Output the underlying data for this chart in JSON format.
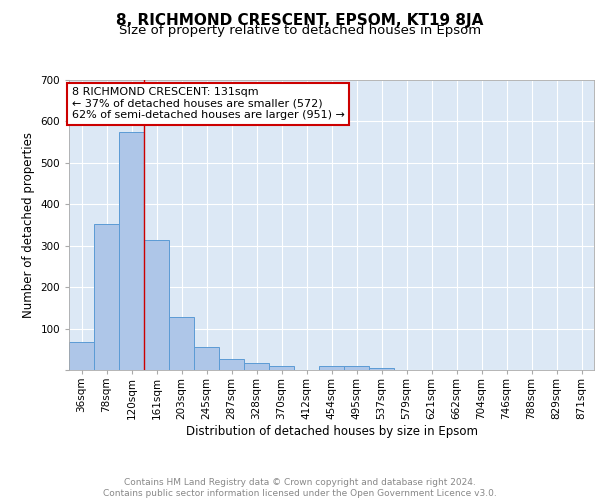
{
  "title1": "8, RICHMOND CRESCENT, EPSOM, KT19 8JA",
  "title2": "Size of property relative to detached houses in Epsom",
  "xlabel": "Distribution of detached houses by size in Epsom",
  "ylabel": "Number of detached properties",
  "bar_labels": [
    "36sqm",
    "78sqm",
    "120sqm",
    "161sqm",
    "203sqm",
    "245sqm",
    "287sqm",
    "328sqm",
    "370sqm",
    "412sqm",
    "454sqm",
    "495sqm",
    "537sqm",
    "579sqm",
    "621sqm",
    "662sqm",
    "704sqm",
    "746sqm",
    "788sqm",
    "829sqm",
    "871sqm"
  ],
  "bar_values": [
    68,
    352,
    575,
    314,
    127,
    55,
    27,
    16,
    9,
    0,
    9,
    9,
    5,
    0,
    0,
    0,
    0,
    0,
    0,
    0,
    0
  ],
  "bar_color": "#aec6e8",
  "bar_edge_color": "#5b9bd5",
  "background_color": "#dce8f5",
  "grid_color": "#ffffff",
  "red_line_x": 2.5,
  "annotation_text": "8 RICHMOND CRESCENT: 131sqm\n← 37% of detached houses are smaller (572)\n62% of semi-detached houses are larger (951) →",
  "annotation_box_color": "#ffffff",
  "annotation_box_edge": "#cc0000",
  "ylim": [
    0,
    700
  ],
  "yticks": [
    0,
    100,
    200,
    300,
    400,
    500,
    600,
    700
  ],
  "footer_text": "Contains HM Land Registry data © Crown copyright and database right 2024.\nContains public sector information licensed under the Open Government Licence v3.0.",
  "title1_fontsize": 11,
  "title2_fontsize": 9.5,
  "xlabel_fontsize": 8.5,
  "ylabel_fontsize": 8.5,
  "tick_fontsize": 7.5,
  "annotation_fontsize": 8,
  "footer_fontsize": 6.5
}
